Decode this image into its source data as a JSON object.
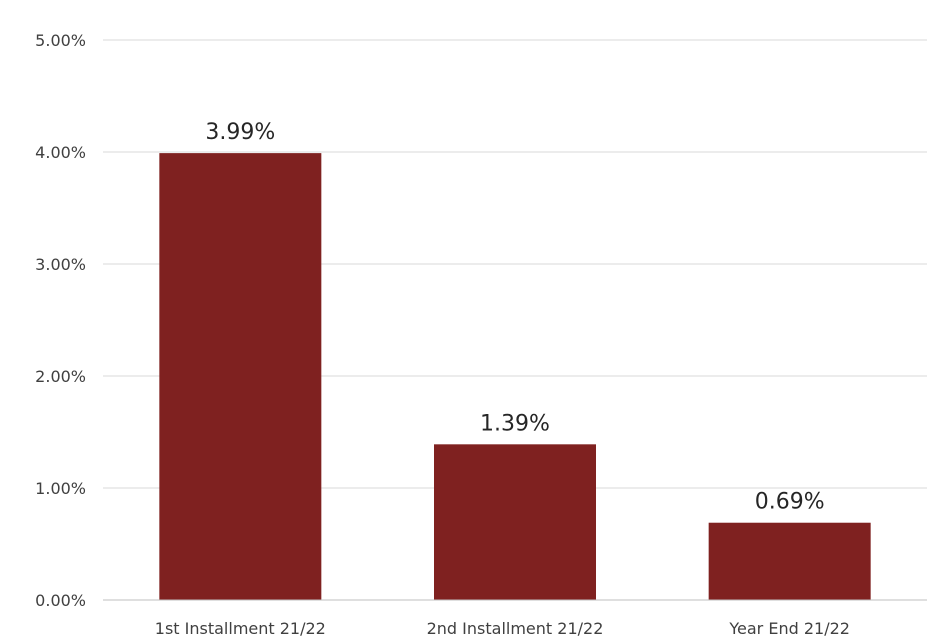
{
  "chart_data": {
    "type": "bar",
    "title": "",
    "xlabel": "",
    "ylabel": "",
    "categories": [
      "1st Installment 21/22",
      "2nd Installment 21/22",
      "Year End 21/22"
    ],
    "values": [
      3.99,
      1.39,
      0.69
    ],
    "data_labels": [
      "3.99%",
      "1.39%",
      "0.69%"
    ],
    "ylim": [
      0,
      5
    ],
    "yticks": [
      0,
      1,
      2,
      3,
      4,
      5
    ],
    "ytick_labels": [
      "0.00%",
      "1.00%",
      "2.00%",
      "3.00%",
      "4.00%",
      "5.00%"
    ],
    "grid": true,
    "legend": "none",
    "colors": {
      "bar": "#7F2120",
      "grid": "#D9D9D9",
      "axis": "#BFBFBF",
      "tick_text": "#404040",
      "label_text": "#262626"
    }
  }
}
